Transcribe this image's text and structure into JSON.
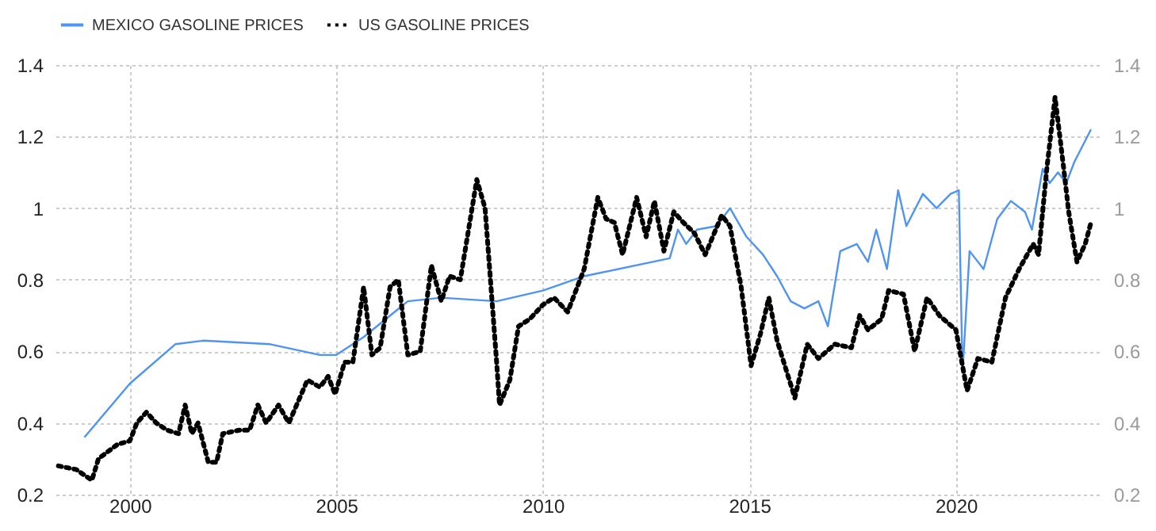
{
  "chart_data": {
    "type": "line",
    "xlim": [
      1998.2,
      2023.5
    ],
    "xticks": [
      2000,
      2005,
      2010,
      2015,
      2020
    ],
    "ylim": [
      0.2,
      1.4
    ],
    "yticks": [
      0.2,
      0.4,
      0.6,
      0.8,
      1,
      1.2,
      1.4
    ],
    "y2lim": [
      0.2,
      1.4
    ],
    "y2ticks": [
      0.2,
      0.4,
      0.6,
      0.8,
      1,
      1.2,
      1.4
    ],
    "grid": true,
    "legend": "top left",
    "marker": "none",
    "series": [
      {
        "name": "MEXICO GASOLINE PRICES",
        "color": "#4f94f0",
        "line_style": "solid",
        "x": [
          1998.9,
          2000,
          2001.1,
          2001.78,
          2003.4,
          2004.6,
          2005.0,
          2005.66,
          2006.73,
          2007.54,
          2008.88,
          2010.0,
          2011.0,
          2013.07,
          2013.27,
          2013.47,
          2013.73,
          2014.2,
          2014.53,
          2014.93,
          2015.33,
          2015.67,
          2016.0,
          2016.33,
          2016.67,
          2016.9,
          2017.2,
          2017.6,
          2017.87,
          2018.07,
          2018.33,
          2018.6,
          2018.8,
          2019.2,
          2019.53,
          2019.87,
          2020.07,
          2020.16,
          2020.33,
          2020.67,
          2021.0,
          2021.33,
          2021.67,
          2021.84,
          2022.1,
          2022.27,
          2022.47,
          2022.67,
          2022.87,
          2023.27
        ],
        "values": [
          0.36,
          0.51,
          0.62,
          0.63,
          0.62,
          0.59,
          0.59,
          0.64,
          0.74,
          0.75,
          0.74,
          0.77,
          0.81,
          0.86,
          0.94,
          0.9,
          0.94,
          0.95,
          1.0,
          0.92,
          0.87,
          0.81,
          0.74,
          0.72,
          0.74,
          0.67,
          0.88,
          0.9,
          0.85,
          0.94,
          0.83,
          1.05,
          0.95,
          1.04,
          1.0,
          1.04,
          1.05,
          0.54,
          0.88,
          0.83,
          0.97,
          1.02,
          0.99,
          0.94,
          1.11,
          1.07,
          1.1,
          1.07,
          1.13,
          1.22
        ]
      },
      {
        "name": "US GASOLINE PRICES",
        "color": "#000000",
        "line_style": "dotted",
        "axis": "y2",
        "x": [
          1998.27,
          1998.7,
          1999.08,
          1999.24,
          1999.7,
          2000,
          2000.17,
          2000.4,
          2000.64,
          2000.9,
          2001.18,
          2001.34,
          2001.5,
          2001.65,
          2001.9,
          2002.1,
          2002.25,
          2002.65,
          2002.9,
          2003.1,
          2003.3,
          2003.6,
          2003.85,
          2004.3,
          2004.6,
          2004.8,
          2004.97,
          2005.2,
          2005.4,
          2005.66,
          2005.86,
          2006.06,
          2006.3,
          2006.5,
          2006.73,
          2007.03,
          2007.3,
          2007.54,
          2007.74,
          2008.0,
          2008.4,
          2008.6,
          2008.88,
          2008.95,
          2009.2,
          2009.41,
          2009.68,
          2010.0,
          2010.27,
          2010.6,
          2011.0,
          2011.33,
          2011.53,
          2011.73,
          2011.93,
          2012.27,
          2012.5,
          2012.7,
          2012.93,
          2013.17,
          2013.4,
          2013.67,
          2013.93,
          2014.33,
          2014.53,
          2014.8,
          2015.04,
          2015.27,
          2015.47,
          2015.67,
          2016.1,
          2016.4,
          2016.67,
          2017.07,
          2017.47,
          2017.67,
          2017.87,
          2018.2,
          2018.37,
          2018.73,
          2019.0,
          2019.3,
          2019.6,
          2020.0,
          2020.27,
          2020.53,
          2020.87,
          2021.2,
          2021.53,
          2021.87,
          2022.0,
          2022.2,
          2022.4,
          2022.6,
          2022.73,
          2022.93,
          2023.13,
          2023.27
        ],
        "values": [
          0.28,
          0.27,
          0.24,
          0.3,
          0.34,
          0.35,
          0.4,
          0.43,
          0.4,
          0.38,
          0.37,
          0.45,
          0.37,
          0.4,
          0.29,
          0.29,
          0.37,
          0.38,
          0.38,
          0.45,
          0.4,
          0.45,
          0.4,
          0.52,
          0.5,
          0.53,
          0.48,
          0.57,
          0.57,
          0.78,
          0.59,
          0.61,
          0.78,
          0.8,
          0.59,
          0.6,
          0.84,
          0.74,
          0.81,
          0.8,
          1.08,
          1.0,
          0.57,
          0.45,
          0.52,
          0.67,
          0.69,
          0.73,
          0.75,
          0.71,
          0.83,
          1.03,
          0.97,
          0.96,
          0.87,
          1.03,
          0.92,
          1.02,
          0.88,
          0.99,
          0.96,
          0.93,
          0.87,
          0.98,
          0.95,
          0.78,
          0.56,
          0.65,
          0.75,
          0.63,
          0.47,
          0.62,
          0.58,
          0.62,
          0.61,
          0.7,
          0.66,
          0.69,
          0.77,
          0.76,
          0.6,
          0.75,
          0.7,
          0.66,
          0.49,
          0.58,
          0.57,
          0.75,
          0.83,
          0.9,
          0.87,
          1.11,
          1.31,
          1.12,
          0.99,
          0.85,
          0.9,
          0.96
        ]
      }
    ]
  }
}
